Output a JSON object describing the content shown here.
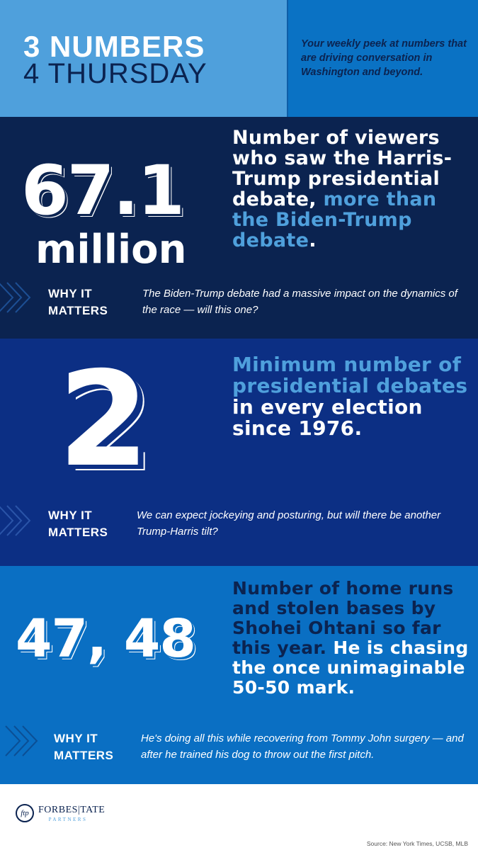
{
  "header": {
    "title_line1": "3 NUMBERS",
    "title_line2": "4 THURSDAY",
    "tagline": "Your weekly peek at numbers that are driving conversation in Washington and beyond."
  },
  "sections": [
    {
      "number": "67.1",
      "number_sub": "million",
      "statement_main": "Number of viewers who saw the Harris-Trump presidential debate,",
      "statement_highlight": "more than the Biden-Trump debate",
      "statement_end": ".",
      "why_label_1": "WHY IT",
      "why_label_2": "MATTERS",
      "why_text": "The Biden-Trump debate had a massive impact on the dynamics of the race — will this one?"
    },
    {
      "number": "2",
      "statement_highlight": "Minimum number of presidential debates",
      "statement_main": "in every election since 1976.",
      "why_label_1": "WHY IT",
      "why_label_2": "MATTERS",
      "why_text": "We can expect jockeying and posturing, but will there be another Trump-Harris tilt?"
    },
    {
      "number": "47, 48",
      "statement_highlight": "Number of home runs and stolen bases by Shohei Ohtani so far this year.",
      "statement_main": "He is chasing the once unimaginable 50-50 mark.",
      "why_label_1": "WHY IT",
      "why_label_2": "MATTERS",
      "why_text": "He's doing all this while recovering from Tommy John surgery — and after he trained his dog to throw out the first pitch."
    }
  ],
  "footer": {
    "logo_mark": "ftp",
    "logo_name": "FORBES|TATE",
    "logo_sub": "PARTNERS",
    "source": "Source: New York Times, UCSB, MLB"
  },
  "colors": {
    "navy": "#0b2350",
    "royal": "#0c2f84",
    "blue": "#0a6fc3",
    "light_blue": "#4fa0dc"
  },
  "icons": [
    "chevron-arrows-icon"
  ]
}
